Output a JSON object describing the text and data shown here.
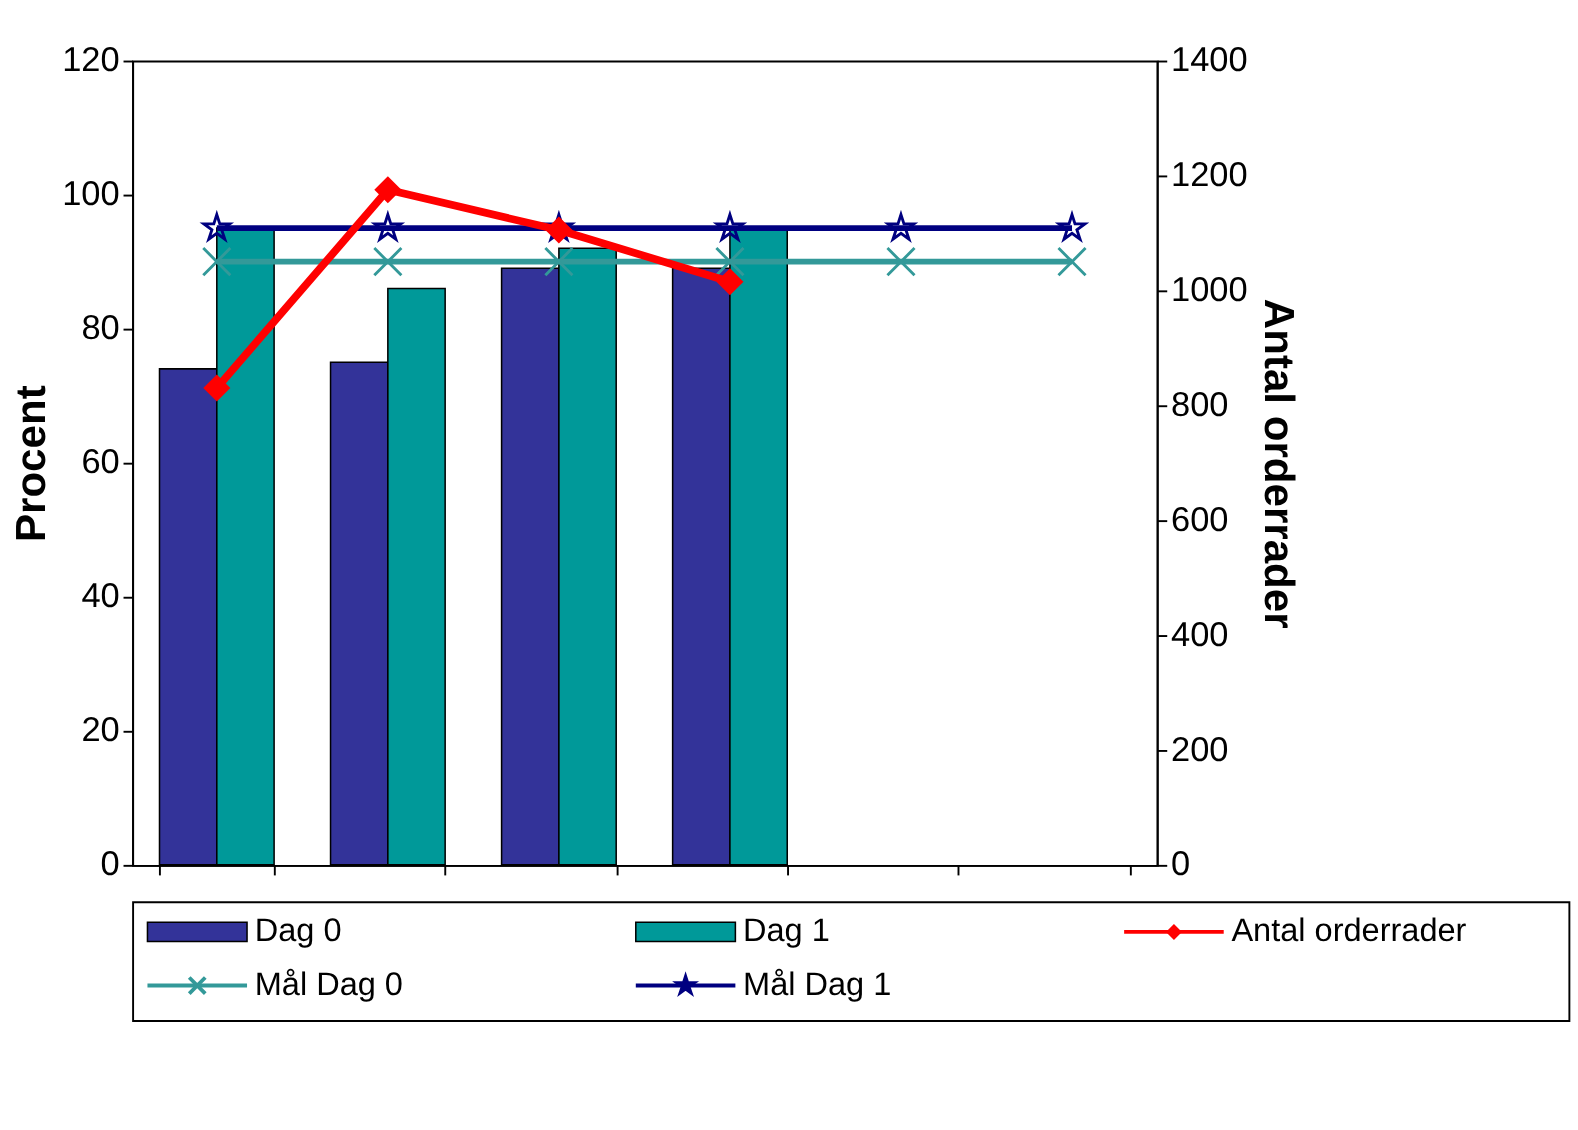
{
  "chart_data": {
    "type": "bar",
    "categories": [
      null,
      null,
      null,
      null,
      null,
      null
    ],
    "ylabel": "Procent",
    "y2label": "Antal orderrader",
    "ylim": [
      0,
      120
    ],
    "yticks": [
      0,
      20,
      40,
      60,
      80,
      100,
      120
    ],
    "y2lim": [
      0,
      1400
    ],
    "y2ticks": [
      0,
      200,
      400,
      600,
      800,
      1000,
      1200,
      1400
    ],
    "tick_labels": "y",
    "grid": false,
    "legend": "bottom",
    "series": [
      {
        "name": "Dag 0",
        "color": "#333399",
        "values": [
          74,
          75,
          89,
          89,
          null,
          null
        ]
      },
      {
        "name": "Dag 1",
        "color": "#009999",
        "values": [
          95,
          86,
          92,
          95,
          null,
          null
        ]
      },
      {
        "name": "Antal orderrader",
        "type": "line",
        "axis": "y2",
        "color": "#ff0000",
        "marker": "diamond",
        "values": [
          830,
          1175,
          1105,
          1015,
          null,
          null
        ]
      },
      {
        "name": "Mål Dag 0",
        "type": "line",
        "color": "#339999",
        "marker": "cross",
        "values": [
          90,
          90,
          90,
          90,
          90,
          90
        ]
      },
      {
        "name": "Mål Dag 1",
        "type": "line",
        "color": "#000080",
        "marker": "star",
        "values": [
          95,
          95,
          95,
          95,
          95,
          95
        ]
      }
    ]
  }
}
